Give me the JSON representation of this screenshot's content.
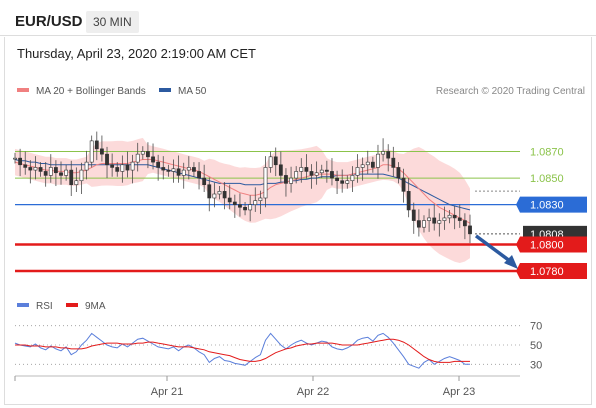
{
  "header": {
    "symbol": "EUR/USD",
    "timeframe": "30 MIN"
  },
  "timestamp": "Thursday, April 23, 2020 2:19:00 AM CET",
  "legend": {
    "bb": "MA 20 + Bollinger Bands",
    "ma50": "MA 50",
    "rsi": "RSI",
    "ma9": "9MA"
  },
  "source": "Research © 2020 Trading Central",
  "colors": {
    "bb": "#f08080",
    "ma50": "#2c5aa0",
    "support": "#e31b1b",
    "resistance": "#8bc34a",
    "pivot": "#2b6cd6",
    "current": "#333333",
    "arrow": "#2c5aa0",
    "rsi": "#5b7fdb"
  },
  "chart_data": [
    {
      "type": "line",
      "title": "",
      "ylim": [
        1.0768,
        1.0905
      ],
      "x_ticks": [
        "Apr 21",
        "Apr 22",
        "Apr 23"
      ],
      "levels": [
        {
          "value": 1.087,
          "label": "1.0870",
          "kind": "resistance"
        },
        {
          "value": 1.085,
          "label": "1.0850",
          "kind": "resistance"
        },
        {
          "value": 1.083,
          "label": "1.0830",
          "kind": "pivot"
        },
        {
          "value": 1.0808,
          "label": "1.0808",
          "kind": "current"
        },
        {
          "value": 1.08,
          "label": "1.0800",
          "kind": "support"
        },
        {
          "value": 1.078,
          "label": "1.0780",
          "kind": "support"
        }
      ],
      "series": [
        {
          "name": "price",
          "values": [
            1.0865,
            1.086,
            1.0858,
            1.0856,
            1.0858,
            1.0855,
            1.0852,
            1.0858,
            1.0854,
            1.0852,
            1.0856,
            1.0845,
            1.0848,
            1.0856,
            1.0862,
            1.0878,
            1.0872,
            1.0868,
            1.086,
            1.0858,
            1.0855,
            1.086,
            1.0856,
            1.0862,
            1.0868,
            1.087,
            1.0866,
            1.0862,
            1.0858,
            1.0856,
            1.0855,
            1.0857,
            1.0852,
            1.0856,
            1.0858,
            1.0855,
            1.085,
            1.0845,
            1.0835,
            1.0838,
            1.084,
            1.0835,
            1.0832,
            1.083,
            1.0828,
            1.0826,
            1.083,
            1.0833,
            1.0835,
            1.0858,
            1.0866,
            1.086,
            1.0852,
            1.0846,
            1.085,
            1.0855,
            1.0858,
            1.0855,
            1.0852,
            1.0854,
            1.0856,
            1.0855,
            1.085,
            1.0848,
            1.0846,
            1.0848,
            1.0852,
            1.0858,
            1.086,
            1.0862,
            1.0858,
            1.0868,
            1.087,
            1.0865,
            1.0858,
            1.085,
            1.084,
            1.0826,
            1.0818,
            1.0813,
            1.0818,
            1.082,
            1.0816,
            1.0818,
            1.082,
            1.0822,
            1.082,
            1.0818,
            1.0814,
            1.0808
          ]
        },
        {
          "name": "MA 20",
          "values": [
            1.0862,
            1.0861,
            1.086,
            1.0859,
            1.0858,
            1.0857,
            1.0856,
            1.0856,
            1.0855,
            1.0855,
            1.0855,
            1.0854,
            1.0854,
            1.0855,
            1.0856,
            1.0858,
            1.086,
            1.0861,
            1.0861,
            1.0861,
            1.0861,
            1.0861,
            1.0861,
            1.0862,
            1.0863,
            1.0864,
            1.0864,
            1.0864,
            1.0863,
            1.0862,
            1.0861,
            1.086,
            1.0859,
            1.0858,
            1.0857,
            1.0856,
            1.0855,
            1.0853,
            1.0851,
            1.0849,
            1.0847,
            1.0845,
            1.0843,
            1.0841,
            1.0839,
            1.0838,
            1.0837,
            1.0837,
            1.0838,
            1.084,
            1.0843,
            1.0845,
            1.0846,
            1.0847,
            1.0848,
            1.0849,
            1.085,
            1.0851,
            1.0852,
            1.0853,
            1.0853,
            1.0853,
            1.0853,
            1.0852,
            1.0852,
            1.0852,
            1.0853,
            1.0854,
            1.0855,
            1.0856,
            1.0857,
            1.0858,
            1.086,
            1.086,
            1.0859,
            1.0857,
            1.0854,
            1.085,
            1.0846,
            1.0842,
            1.0838,
            1.0834,
            1.0831,
            1.0828,
            1.0826,
            1.0824,
            1.0822,
            1.082,
            1.0818,
            1.0816
          ]
        },
        {
          "name": "MA 50",
          "values": [
            1.0864,
            1.0863,
            1.0863,
            1.0862,
            1.0862,
            1.0861,
            1.0861,
            1.086,
            1.086,
            1.086,
            1.086,
            1.086,
            1.086,
            1.086,
            1.086,
            1.086,
            1.086,
            1.086,
            1.086,
            1.086,
            1.086,
            1.086,
            1.086,
            1.086,
            1.086,
            1.086,
            1.086,
            1.0859,
            1.0858,
            1.0857,
            1.0856,
            1.0855,
            1.0854,
            1.0853,
            1.0852,
            1.0851,
            1.085,
            1.0849,
            1.0848,
            1.0847,
            1.0846,
            1.0846,
            1.0846,
            1.0846,
            1.0846,
            1.0845,
            1.0845,
            1.0845,
            1.0845,
            1.0846,
            1.0846,
            1.0846,
            1.0847,
            1.0847,
            1.0848,
            1.0848,
            1.0849,
            1.0849,
            1.085,
            1.085,
            1.0851,
            1.0851,
            1.0851,
            1.0852,
            1.0852,
            1.0852,
            1.0853,
            1.0853,
            1.0853,
            1.0853,
            1.0853,
            1.0853,
            1.0853,
            1.0852,
            1.0851,
            1.085,
            1.0848,
            1.0846,
            1.0844,
            1.0842,
            1.084,
            1.0838,
            1.0836,
            1.0834,
            1.0832,
            1.083,
            1.0829,
            1.0828,
            1.0827,
            1.0826
          ]
        }
      ],
      "forecast": {
        "from": 1.0808,
        "to": 1.078
      }
    },
    {
      "type": "line",
      "title": "",
      "ylim": [
        20,
        80
      ],
      "y_ticks": [
        30,
        50,
        70
      ],
      "series": [
        {
          "name": "RSI",
          "values": [
            52,
            50,
            49,
            48,
            51,
            47,
            45,
            49,
            46,
            44,
            48,
            40,
            43,
            50,
            55,
            62,
            58,
            54,
            50,
            48,
            47,
            51,
            48,
            52,
            56,
            57,
            54,
            51,
            48,
            47,
            46,
            48,
            44,
            48,
            50,
            47,
            43,
            40,
            32,
            36,
            38,
            34,
            33,
            31,
            30,
            29,
            33,
            37,
            40,
            55,
            62,
            56,
            50,
            46,
            50,
            53,
            55,
            52,
            50,
            52,
            54,
            53,
            48,
            46,
            45,
            47,
            50,
            55,
            57,
            58,
            54,
            60,
            62,
            58,
            52,
            45,
            38,
            30,
            28,
            26,
            32,
            35,
            30,
            33,
            36,
            38,
            36,
            34,
            30,
            30
          ]
        },
        {
          "name": "9MA",
          "values": [
            50,
            50,
            50,
            49,
            49,
            49,
            48,
            48,
            48,
            47,
            47,
            46,
            46,
            46,
            47,
            49,
            50,
            51,
            52,
            52,
            52,
            51,
            51,
            51,
            52,
            52,
            53,
            53,
            52,
            51,
            50,
            49,
            48,
            48,
            48,
            47,
            46,
            45,
            43,
            42,
            41,
            40,
            39,
            37,
            35,
            34,
            33,
            33,
            34,
            36,
            39,
            42,
            44,
            46,
            47,
            49,
            50,
            51,
            51,
            52,
            52,
            52,
            52,
            51,
            50,
            50,
            50,
            50,
            51,
            52,
            53,
            54,
            55,
            56,
            56,
            55,
            53,
            50,
            46,
            42,
            38,
            35,
            33,
            32,
            32,
            32,
            33,
            33,
            33,
            33
          ]
        }
      ]
    }
  ]
}
